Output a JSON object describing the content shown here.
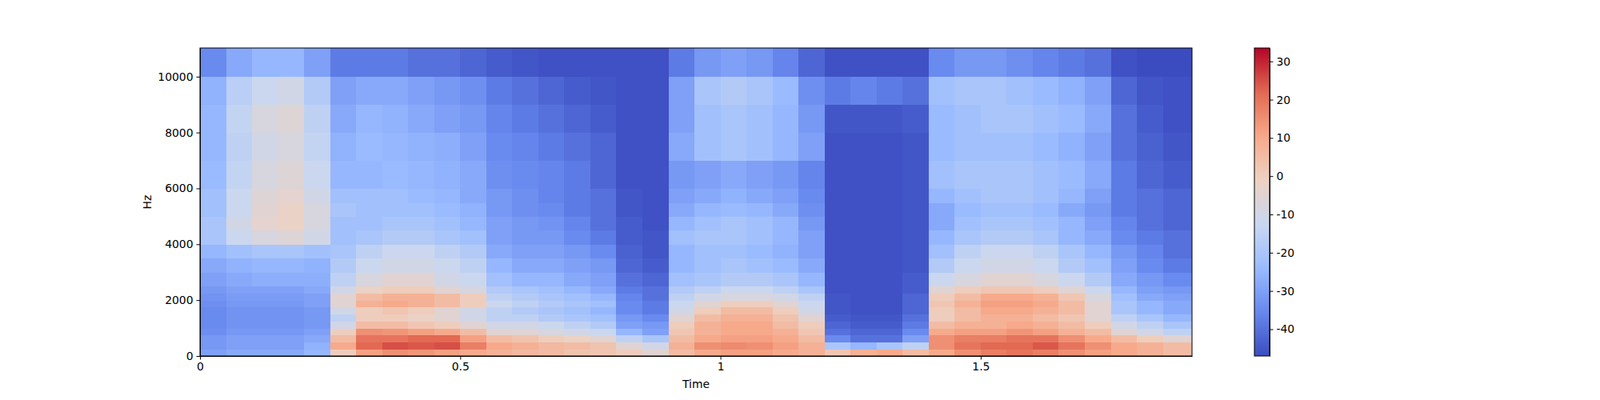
{
  "chart_data": {
    "type": "heatmap",
    "x_label": "Time",
    "y_label": "Hz",
    "xlim": [
      0,
      1.906
    ],
    "xticks": [
      0,
      0.5,
      1,
      1.5
    ],
    "ylim": [
      0,
      11025
    ],
    "yticks": [
      0,
      2000,
      4000,
      6000,
      8000,
      10000
    ],
    "x_bins": [
      0,
      0.05,
      0.1,
      0.15,
      0.2,
      0.25,
      0.3,
      0.35,
      0.4,
      0.45,
      0.5,
      0.55,
      0.6,
      0.65,
      0.7,
      0.75,
      0.8,
      0.85,
      0.9,
      0.95,
      1,
      1.05,
      1.1,
      1.15,
      1.2,
      1.25,
      1.3,
      1.35,
      1.4,
      1.45,
      1.5,
      1.55,
      1.6,
      1.65,
      1.7,
      1.75,
      1.8,
      1.85,
      1.906
    ],
    "y_bins": [
      0,
      250,
      500,
      750,
      1000,
      1250,
      1500,
      1750,
      2000,
      2250,
      2500,
      3000,
      3500,
      4000,
      4500,
      5000,
      5500,
      6000,
      7000,
      8000,
      9000,
      10000,
      11025
    ],
    "values": [
      [
        -30,
        -28,
        -28,
        -28,
        -25,
        0,
        12,
        15,
        14,
        12,
        10,
        8,
        6,
        5,
        3,
        2,
        0,
        -5,
        5,
        10,
        12,
        12,
        10,
        8,
        2,
        8,
        10,
        5,
        10,
        15,
        18,
        20,
        18,
        15,
        12,
        10,
        8,
        5
      ],
      [
        -32,
        -30,
        -30,
        -30,
        -26,
        10,
        22,
        25,
        24,
        25,
        18,
        10,
        8,
        6,
        5,
        3,
        -5,
        -10,
        8,
        15,
        16,
        15,
        12,
        8,
        -20,
        -25,
        -20,
        -15,
        15,
        20,
        22,
        22,
        24,
        20,
        15,
        10,
        8,
        5
      ],
      [
        -32,
        -30,
        -30,
        -30,
        -28,
        5,
        20,
        20,
        22,
        22,
        12,
        5,
        3,
        0,
        -2,
        -5,
        -15,
        -20,
        5,
        10,
        12,
        12,
        10,
        5,
        -35,
        -40,
        -40,
        -30,
        15,
        18,
        18,
        20,
        20,
        15,
        10,
        5,
        0,
        -5
      ],
      [
        -34,
        -32,
        -32,
        -32,
        -30,
        0,
        15,
        14,
        12,
        10,
        5,
        -5,
        -5,
        -8,
        -10,
        -12,
        -25,
        -30,
        2,
        8,
        10,
        10,
        8,
        2,
        -40,
        -42,
        -42,
        -35,
        10,
        12,
        12,
        14,
        12,
        8,
        5,
        -5,
        -10,
        -15
      ],
      [
        -35,
        -33,
        -33,
        -33,
        -32,
        -10,
        5,
        5,
        2,
        0,
        -5,
        -10,
        -10,
        -12,
        -15,
        -18,
        -30,
        -32,
        0,
        8,
        10,
        10,
        5,
        0,
        -42,
        -44,
        -44,
        -38,
        5,
        8,
        8,
        10,
        8,
        5,
        0,
        -10,
        -15,
        -20
      ],
      [
        -35,
        -33,
        -33,
        -33,
        -32,
        -15,
        0,
        0,
        -2,
        -5,
        -10,
        -15,
        -15,
        -18,
        -20,
        -22,
        -32,
        -35,
        -5,
        5,
        8,
        8,
        3,
        -5,
        -44,
        -45,
        -45,
        -40,
        0,
        5,
        8,
        8,
        5,
        2,
        -5,
        -15,
        -20,
        -25
      ],
      [
        -35,
        -33,
        -33,
        -33,
        -32,
        -10,
        0,
        2,
        0,
        -5,
        -10,
        -15,
        -18,
        -20,
        -22,
        -25,
        -35,
        -38,
        -10,
        0,
        5,
        5,
        0,
        -10,
        -45,
        -46,
        -46,
        -42,
        0,
        5,
        10,
        10,
        8,
        5,
        -5,
        -20,
        -25,
        -28
      ],
      [
        -34,
        -32,
        -32,
        -32,
        -30,
        -5,
        8,
        10,
        8,
        5,
        0,
        -12,
        -15,
        -18,
        -20,
        -22,
        -35,
        -38,
        -12,
        -5,
        0,
        0,
        -5,
        -12,
        -45,
        -46,
        -46,
        -42,
        2,
        8,
        12,
        12,
        10,
        5,
        -5,
        -20,
        -25,
        -28
      ],
      [
        -33,
        -31,
        -31,
        -31,
        -30,
        -5,
        5,
        8,
        8,
        5,
        0,
        -15,
        -18,
        -20,
        -22,
        -25,
        -36,
        -40,
        -15,
        -10,
        -8,
        -8,
        -10,
        -15,
        -45,
        -46,
        -46,
        -42,
        0,
        5,
        10,
        10,
        8,
        2,
        -8,
        -22,
        -28,
        -30
      ],
      [
        -32,
        -30,
        -30,
        -30,
        -28,
        -10,
        -2,
        0,
        0,
        -5,
        -8,
        -18,
        -20,
        -22,
        -25,
        -28,
        -38,
        -40,
        -18,
        -15,
        -12,
        -12,
        -15,
        -20,
        -46,
        -46,
        -46,
        -44,
        -5,
        0,
        2,
        2,
        0,
        -5,
        -12,
        -25,
        -30,
        -32
      ],
      [
        -30,
        -28,
        -27,
        -27,
        -27,
        -15,
        -8,
        -5,
        -5,
        -10,
        -12,
        -22,
        -25,
        -25,
        -28,
        -30,
        -40,
        -42,
        -22,
        -20,
        -18,
        -18,
        -20,
        -25,
        -46,
        -46,
        -46,
        -44,
        -12,
        -8,
        -5,
        -5,
        -8,
        -12,
        -18,
        -28,
        -32,
        -35
      ],
      [
        -28,
        -26,
        -25,
        -25,
        -26,
        -18,
        -12,
        -10,
        -10,
        -12,
        -15,
        -25,
        -28,
        -28,
        -30,
        -32,
        -42,
        -44,
        -25,
        -22,
        -20,
        -22,
        -24,
        -28,
        -46,
        -46,
        -46,
        -45,
        -18,
        -12,
        -10,
        -10,
        -12,
        -18,
        -22,
        -30,
        -35,
        -38
      ],
      [
        -25,
        -22,
        -20,
        -20,
        -22,
        -20,
        -15,
        -12,
        -12,
        -15,
        -18,
        -28,
        -30,
        -30,
        -32,
        -35,
        -43,
        -45,
        -25,
        -22,
        -22,
        -24,
        -26,
        -30,
        -46,
        -46,
        -46,
        -45,
        -22,
        -15,
        -12,
        -12,
        -15,
        -20,
        -25,
        -32,
        -36,
        -40
      ],
      [
        -20,
        -12,
        -8,
        -6,
        -10,
        -22,
        -20,
        -18,
        -18,
        -20,
        -22,
        -30,
        -32,
        -32,
        -35,
        -38,
        -44,
        -45,
        -22,
        -20,
        -20,
        -22,
        -25,
        -30,
        -46,
        -46,
        -46,
        -45,
        -25,
        -20,
        -18,
        -18,
        -20,
        -25,
        -28,
        -35,
        -38,
        -40
      ],
      [
        -20,
        -10,
        -4,
        -2,
        -8,
        -22,
        -22,
        -20,
        -20,
        -22,
        -25,
        -30,
        -32,
        -33,
        -36,
        -40,
        -44,
        -46,
        -25,
        -22,
        -20,
        -22,
        -25,
        -32,
        -46,
        -46,
        -46,
        -45,
        -28,
        -22,
        -20,
        -20,
        -22,
        -25,
        -30,
        -36,
        -40,
        -42
      ],
      [
        -22,
        -12,
        -5,
        -2,
        -8,
        -20,
        -22,
        -22,
        -22,
        -24,
        -26,
        -32,
        -34,
        -35,
        -38,
        -40,
        -45,
        -46,
        -28,
        -25,
        -24,
        -25,
        -28,
        -34,
        -46,
        -46,
        -46,
        -45,
        -28,
        -24,
        -22,
        -22,
        -24,
        -28,
        -32,
        -38,
        -40,
        -42
      ],
      [
        -22,
        -12,
        -6,
        -4,
        -10,
        -22,
        -22,
        -22,
        -24,
        -25,
        -28,
        -32,
        -34,
        -36,
        -38,
        -40,
        -45,
        -46,
        -30,
        -28,
        -26,
        -28,
        -30,
        -35,
        -46,
        -46,
        -46,
        -45,
        -25,
        -22,
        -20,
        -20,
        -22,
        -25,
        -30,
        -38,
        -40,
        -42
      ],
      [
        -24,
        -14,
        -8,
        -6,
        -12,
        -25,
        -25,
        -24,
        -25,
        -26,
        -28,
        -34,
        -35,
        -36,
        -38,
        -42,
        -46,
        -46,
        -32,
        -30,
        -28,
        -30,
        -32,
        -36,
        -46,
        -46,
        -46,
        -45,
        -22,
        -20,
        -20,
        -20,
        -22,
        -24,
        -28,
        -38,
        -42,
        -44
      ],
      [
        -25,
        -15,
        -10,
        -8,
        -14,
        -26,
        -24,
        -25,
        -26,
        -27,
        -30,
        -35,
        -36,
        -38,
        -40,
        -42,
        -46,
        -46,
        -28,
        -22,
        -20,
        -22,
        -25,
        -30,
        -46,
        -46,
        -46,
        -45,
        -24,
        -22,
        -22,
        -22,
        -24,
        -26,
        -30,
        -40,
        -43,
        -45
      ],
      [
        -25,
        -14,
        -8,
        -6,
        -15,
        -28,
        -25,
        -26,
        -28,
        -30,
        -32,
        -36,
        -38,
        -40,
        -42,
        -44,
        -46,
        -46,
        -30,
        -22,
        -20,
        -22,
        -25,
        -32,
        -45,
        -45,
        -45,
        -44,
        -24,
        -22,
        -20,
        -20,
        -22,
        -24,
        -28,
        -40,
        -44,
        -46
      ],
      [
        -26,
        -16,
        -12,
        -10,
        -18,
        -30,
        -28,
        -28,
        -30,
        -32,
        -34,
        -38,
        -40,
        -42,
        -44,
        -45,
        -46,
        -46,
        -30,
        -20,
        -18,
        -20,
        -24,
        -34,
        -38,
        -36,
        -38,
        -40,
        -22,
        -20,
        -20,
        -22,
        -24,
        -26,
        -30,
        -42,
        -45,
        -46
      ],
      [
        -35,
        -28,
        -25,
        -25,
        -30,
        -38,
        -38,
        -38,
        -40,
        -40,
        -42,
        -44,
        -45,
        -46,
        -46,
        -46,
        -46,
        -46,
        -38,
        -32,
        -30,
        -32,
        -36,
        -42,
        -46,
        -46,
        -46,
        -46,
        -35,
        -32,
        -32,
        -34,
        -36,
        -38,
        -40,
        -46,
        -47,
        -47
      ]
    ],
    "colorbar": {
      "range": [
        -47,
        33.5
      ],
      "ticks": [
        -40,
        -30,
        -20,
        -10,
        0,
        10,
        20,
        30
      ]
    }
  }
}
